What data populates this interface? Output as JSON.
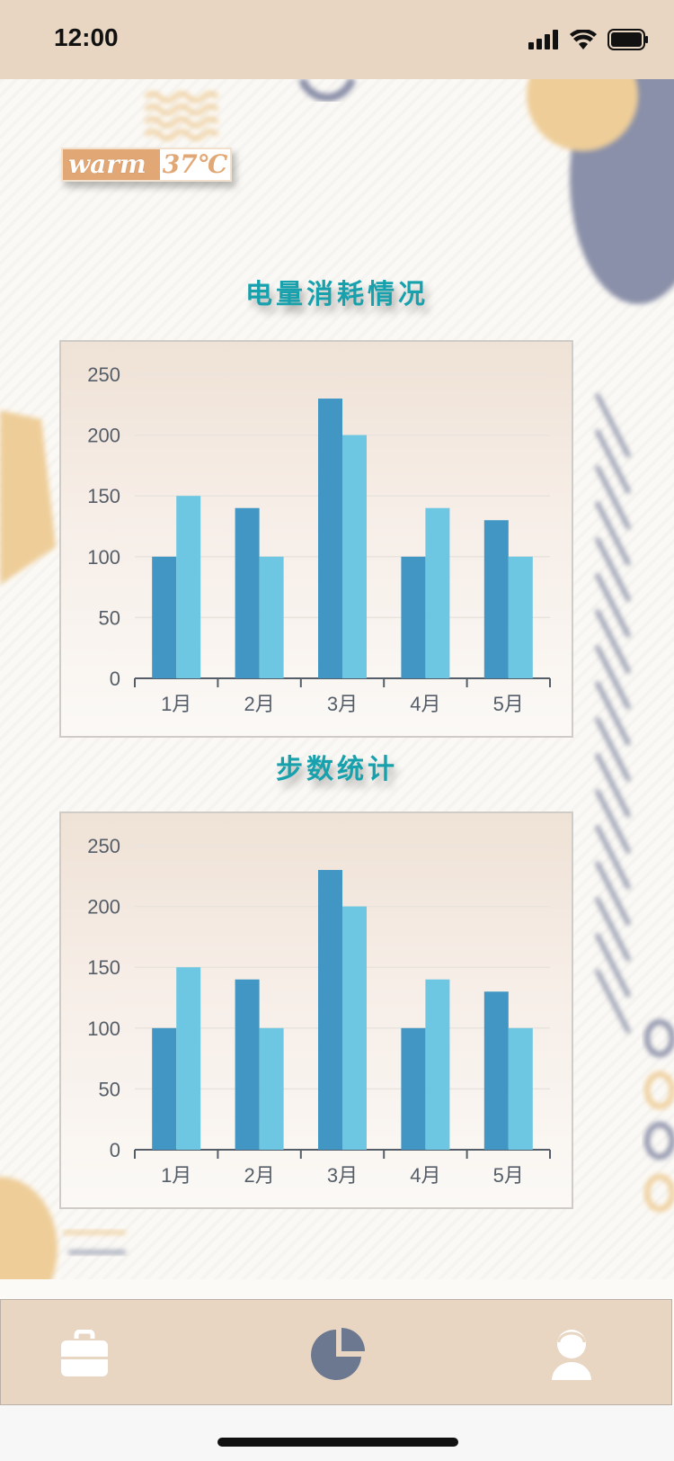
{
  "status_bar": {
    "time": "12:00",
    "icons": [
      "signal-icon",
      "wifi-icon",
      "battery-icon"
    ]
  },
  "logo": {
    "word": "warm",
    "temp": "37℃"
  },
  "sections": [
    {
      "title": "电量消耗情况"
    },
    {
      "title": "步数统计"
    }
  ],
  "chart_data": [
    {
      "type": "bar",
      "title": "电量消耗情况",
      "categories": [
        "1月",
        "2月",
        "3月",
        "4月",
        "5月"
      ],
      "series": [
        {
          "values": [
            100,
            140,
            230,
            100,
            130
          ],
          "color": "#4196c4"
        },
        {
          "values": [
            150,
            100,
            200,
            140,
            100
          ],
          "color": "#6ec7e2"
        }
      ],
      "ylim": [
        0,
        250
      ],
      "yticks": [
        0,
        50,
        100,
        150,
        200,
        250
      ],
      "grid": true,
      "legend": "none"
    },
    {
      "type": "bar",
      "title": "步数统计",
      "categories": [
        "1月",
        "2月",
        "3月",
        "4月",
        "5月"
      ],
      "series": [
        {
          "values": [
            100,
            140,
            230,
            100,
            130
          ],
          "color": "#4196c4"
        },
        {
          "values": [
            150,
            100,
            200,
            140,
            100
          ],
          "color": "#6ec7e2"
        }
      ],
      "ylim": [
        0,
        250
      ],
      "yticks": [
        0,
        50,
        100,
        150,
        200,
        250
      ],
      "grid": true,
      "legend": "none"
    }
  ],
  "tab_bar": {
    "tabs": [
      {
        "icon": "briefcase-icon",
        "active": false
      },
      {
        "icon": "pie-chart-icon",
        "active": true
      },
      {
        "icon": "user-icon",
        "active": false
      }
    ],
    "active_color": "#6b7890",
    "inactive_color": "#ffffff"
  }
}
